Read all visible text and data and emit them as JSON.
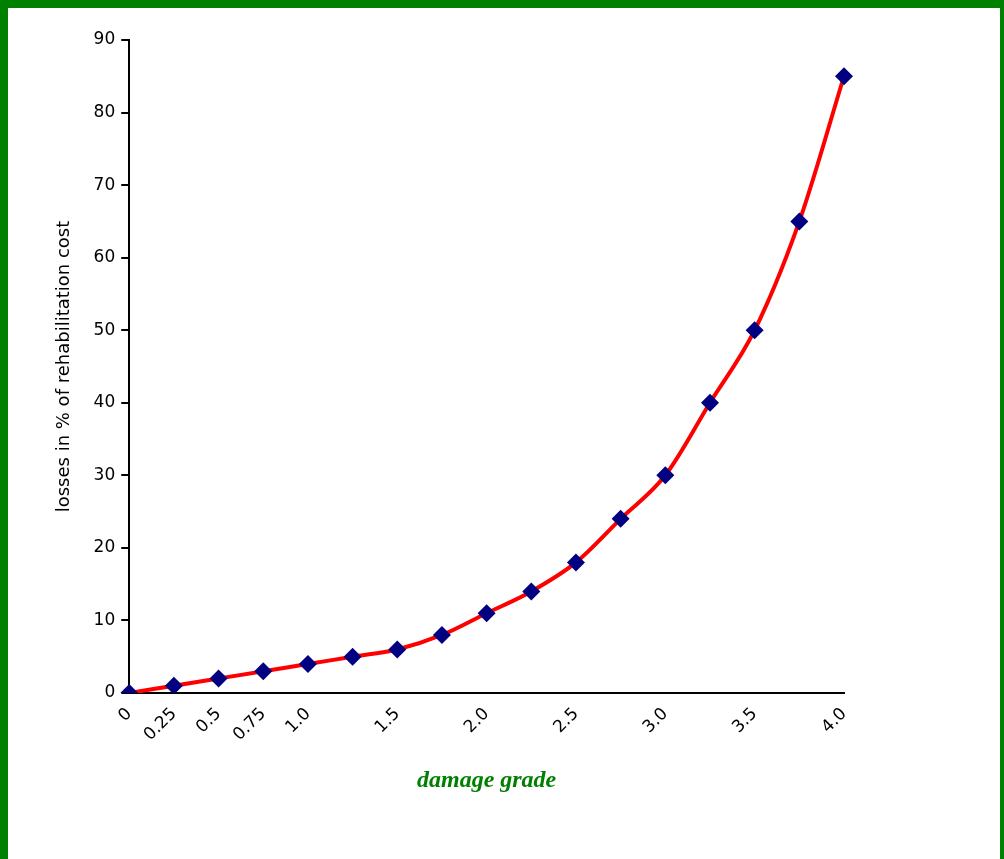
{
  "chart_data": {
    "type": "line",
    "xlabel": "damage grade",
    "ylabel": "losses in % of rehabilitation cost",
    "categories": [
      "0",
      "0.25",
      "0.5",
      "0.75",
      "1.0",
      null,
      "1.5",
      null,
      "2.0",
      null,
      "2.5",
      null,
      "3.0",
      null,
      "3.5",
      null,
      "4.0"
    ],
    "series": [
      {
        "color": "#ff0000",
        "colors": [
          "#000080",
          "#000080",
          "#000080",
          "#000080",
          "#000080",
          "#000080",
          "#000080",
          "#000080",
          "#000080",
          "#000080",
          "#000080",
          "#000080",
          "#000080",
          "#000080",
          "#000080",
          "#000080",
          "#000080"
        ],
        "values": [
          0,
          1,
          2,
          3,
          4,
          5,
          6,
          8,
          11,
          14,
          18,
          24,
          30,
          40,
          50,
          65,
          85
        ]
      }
    ],
    "ylim": [
      0,
      90
    ],
    "yticks": [
      0,
      10,
      20,
      30,
      40,
      50,
      60,
      70,
      80,
      90
    ],
    "grid": false,
    "legend": false,
    "marker": "diamond",
    "line_style": "solid"
  }
}
